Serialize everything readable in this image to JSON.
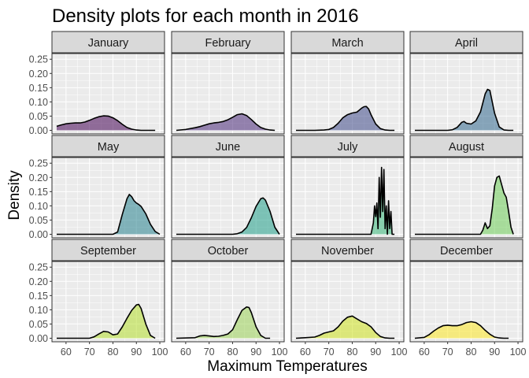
{
  "chart_data": {
    "type": "area",
    "title": "Density plots for each month in 2016",
    "xlabel": "Maximum Temperatures",
    "ylabel": "Density",
    "xlim": [
      54,
      102
    ],
    "ylim": [
      -0.0125,
      0.27
    ],
    "x_ticks": [
      60,
      70,
      80,
      90,
      100
    ],
    "y_ticks": [
      0.0,
      0.05,
      0.1,
      0.15,
      0.2,
      0.25
    ],
    "x_tick_labels": [
      "60",
      "70",
      "80",
      "90",
      "100"
    ],
    "y_tick_labels": [
      "0.00",
      "0.05",
      "0.10",
      "0.15",
      "0.20",
      "0.25"
    ],
    "grid": true,
    "layout": "facet grid, 3 rows x 4 columns",
    "panels": [
      {
        "name": "January",
        "color": "#440154",
        "x": [
          56,
          58,
          60,
          62,
          64,
          66,
          68,
          70,
          72,
          74,
          76,
          78,
          80,
          82,
          84,
          86,
          88,
          90,
          92,
          94,
          96,
          98
        ],
        "y": [
          0.014,
          0.019,
          0.023,
          0.025,
          0.026,
          0.026,
          0.029,
          0.035,
          0.042,
          0.048,
          0.051,
          0.05,
          0.044,
          0.034,
          0.021,
          0.01,
          0.004,
          0.001,
          0.0,
          0.0,
          0.0,
          0.0
        ]
      },
      {
        "name": "February",
        "color": "#482878",
        "x": [
          56,
          60,
          64,
          66,
          68,
          70,
          72,
          74,
          76,
          78,
          80,
          82,
          84,
          86,
          88,
          90,
          92,
          94,
          96,
          98
        ],
        "y": [
          0.0,
          0.003,
          0.009,
          0.013,
          0.018,
          0.023,
          0.026,
          0.028,
          0.031,
          0.037,
          0.046,
          0.055,
          0.058,
          0.052,
          0.038,
          0.022,
          0.01,
          0.004,
          0.001,
          0.0
        ]
      },
      {
        "name": "March",
        "color": "#3e4989",
        "x": [
          56,
          64,
          68,
          70,
          72,
          74,
          76,
          78,
          80,
          82,
          84,
          85,
          86,
          87,
          88,
          90,
          92,
          94,
          96,
          98
        ],
        "y": [
          0.0,
          0.0,
          0.001,
          0.003,
          0.01,
          0.025,
          0.044,
          0.055,
          0.061,
          0.064,
          0.078,
          0.083,
          0.084,
          0.075,
          0.055,
          0.022,
          0.006,
          0.001,
          0.0,
          0.0
        ]
      },
      {
        "name": "April",
        "color": "#31688e",
        "x": [
          56,
          70,
          72,
          74,
          76,
          77,
          78,
          80,
          82,
          84,
          86,
          87,
          88,
          89,
          90,
          92,
          94,
          96,
          98
        ],
        "y": [
          0.0,
          0.0,
          0.002,
          0.01,
          0.028,
          0.031,
          0.025,
          0.022,
          0.033,
          0.065,
          0.128,
          0.144,
          0.14,
          0.1,
          0.06,
          0.012,
          0.001,
          0.0,
          0.0
        ]
      },
      {
        "name": "May",
        "color": "#26828e",
        "x": [
          56,
          80,
          82,
          84,
          86,
          87,
          88,
          89,
          90,
          91,
          92,
          94,
          96,
          98,
          100
        ],
        "y": [
          0.0,
          0.0,
          0.008,
          0.07,
          0.125,
          0.14,
          0.132,
          0.118,
          0.11,
          0.105,
          0.098,
          0.072,
          0.035,
          0.01,
          0.0
        ]
      },
      {
        "name": "June",
        "color": "#1f9e89",
        "x": [
          56,
          80,
          82,
          84,
          86,
          88,
          90,
          92,
          93,
          94,
          96,
          98,
          100
        ],
        "y": [
          0.0,
          0.0,
          0.002,
          0.008,
          0.024,
          0.058,
          0.098,
          0.125,
          0.128,
          0.12,
          0.08,
          0.025,
          0.0
        ]
      },
      {
        "name": "July",
        "color": "#35b779",
        "x": [
          56,
          88,
          89,
          89.5,
          90,
          90.5,
          91,
          91.5,
          92,
          92.5,
          93,
          93.5,
          94,
          94.5,
          95,
          95.5,
          96,
          96.5,
          97,
          98
        ],
        "y": [
          0.0,
          0.0,
          0.04,
          0.1,
          0.062,
          0.11,
          0.02,
          0.2,
          0.06,
          0.235,
          0.08,
          0.228,
          0.02,
          0.1,
          0.0,
          0.118,
          0.02,
          0.08,
          0.0,
          0.0
        ]
      },
      {
        "name": "August",
        "color": "#6ece58",
        "x": [
          56,
          84,
          85,
          86,
          87,
          88,
          89,
          90,
          91,
          92,
          93,
          94,
          95,
          96,
          97,
          98
        ],
        "y": [
          0.0,
          0.0,
          0.015,
          0.04,
          0.02,
          0.03,
          0.09,
          0.17,
          0.2,
          0.205,
          0.175,
          0.145,
          0.13,
          0.08,
          0.025,
          0.0
        ]
      },
      {
        "name": "September",
        "color": "#b5de2b",
        "x": [
          56,
          70,
          72,
          74,
          76,
          78,
          80,
          82,
          84,
          86,
          88,
          90,
          91,
          92,
          94,
          96,
          98
        ],
        "y": [
          0.0,
          0.0,
          0.005,
          0.015,
          0.024,
          0.022,
          0.012,
          0.015,
          0.04,
          0.07,
          0.098,
          0.117,
          0.119,
          0.105,
          0.05,
          0.01,
          0.0
        ]
      },
      {
        "name": "October",
        "color": "#9ad256",
        "x": [
          56,
          64,
          66,
          68,
          70,
          72,
          74,
          76,
          78,
          80,
          82,
          84,
          86,
          87,
          88,
          90,
          92,
          94,
          96
        ],
        "y": [
          0.0,
          0.002,
          0.008,
          0.01,
          0.008,
          0.006,
          0.007,
          0.01,
          0.015,
          0.03,
          0.065,
          0.098,
          0.11,
          0.108,
          0.09,
          0.04,
          0.01,
          0.0,
          0.0
        ]
      },
      {
        "name": "November",
        "color": "#cde11d",
        "x": [
          56,
          60,
          64,
          66,
          68,
          70,
          72,
          74,
          76,
          78,
          80,
          82,
          84,
          86,
          88,
          90,
          92,
          94,
          96,
          98
        ],
        "y": [
          0.0,
          0.002,
          0.004,
          0.01,
          0.018,
          0.022,
          0.026,
          0.04,
          0.06,
          0.074,
          0.078,
          0.068,
          0.058,
          0.052,
          0.04,
          0.02,
          0.006,
          0.001,
          0.0,
          0.0
        ]
      },
      {
        "name": "December",
        "color": "#fde725",
        "x": [
          56,
          60,
          62,
          64,
          66,
          68,
          70,
          72,
          74,
          76,
          78,
          80,
          82,
          84,
          86,
          88,
          90,
          92,
          94,
          96
        ],
        "y": [
          0.0,
          0.003,
          0.012,
          0.025,
          0.036,
          0.044,
          0.046,
          0.044,
          0.044,
          0.048,
          0.055,
          0.058,
          0.055,
          0.044,
          0.028,
          0.014,
          0.004,
          0.001,
          0.0,
          0.0
        ]
      }
    ]
  }
}
